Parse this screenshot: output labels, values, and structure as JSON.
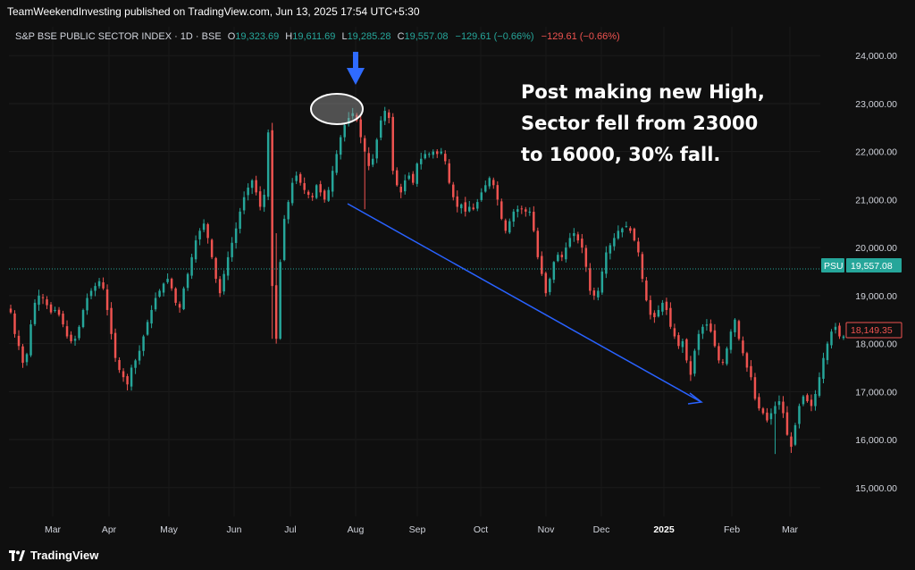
{
  "header": {
    "published": "TeamWeekendInvesting published on TradingView.com, Jun 13, 2025 17:54 UTC+5:30"
  },
  "legend": {
    "symbol": "S&P BSE PUBLIC SECTOR INDEX · 1D · BSE",
    "o_label": "O",
    "o_value": "19,323.69",
    "h_label": "H",
    "h_value": "19,611.69",
    "l_label": "L",
    "l_value": "19,285.28",
    "c_label": "C",
    "c_value": "19,557.08",
    "change": "−129.61 (−0.66%)",
    "change2": "−129.61 (−0.66%)"
  },
  "annotation": {
    "line1": "Post making new High,",
    "line2": "Sector fell from 23000",
    "line3": "to 16000, 30% fall."
  },
  "price_tags": {
    "psu_label": "PSU",
    "psu_value": "19,557.08",
    "cross_value": "18,149.35"
  },
  "footer": {
    "brand": "TradingView"
  },
  "colors": {
    "background": "#0f0f0f",
    "up": "#26a69a",
    "down": "#ef5350",
    "trend_line": "#2962ff",
    "arrow": "#2f6bff"
  },
  "chart_data": {
    "type": "candlestick",
    "ylim": [
      14400,
      24600
    ],
    "y_ticks": [
      15000,
      16000,
      17000,
      18000,
      19000,
      20000,
      21000,
      22000,
      23000,
      24000
    ],
    "y_tick_labels": [
      "15,000.00",
      "16,000.00",
      "17,000.00",
      "18,000.00",
      "19,000.00",
      "20,000.00",
      "21,000.00",
      "22,000.00",
      "23,000.00",
      "24,000.00"
    ],
    "x_tick_labels": [
      "Mar",
      "Apr",
      "May",
      "Jun",
      "Jul",
      "Aug",
      "Sep",
      "Oct",
      "Nov",
      "Dec",
      "2025",
      "Feb",
      "Mar"
    ],
    "bold_tick": "2025",
    "closes": [
      18650,
      18200,
      17950,
      17600,
      17780,
      18400,
      18850,
      19000,
      18950,
      18800,
      18650,
      18700,
      18600,
      18400,
      18150,
      18050,
      18100,
      18350,
      18700,
      18950,
      19100,
      19200,
      19300,
      19150,
      18700,
      18200,
      17700,
      17450,
      17300,
      17150,
      17500,
      17650,
      17850,
      18150,
      18450,
      18700,
      18950,
      19100,
      19250,
      19350,
      19150,
      18850,
      18750,
      19150,
      19450,
      19800,
      20150,
      20350,
      20500,
      20200,
      19800,
      19350,
      19050,
      19450,
      19800,
      20100,
      20400,
      20750,
      21050,
      21250,
      21400,
      21150,
      20850,
      21100,
      22400,
      19200,
      18100,
      19700,
      20600,
      20950,
      21350,
      21500,
      21350,
      21200,
      21100,
      21050,
      21300,
      21150,
      21000,
      21200,
      21600,
      21950,
      22300,
      22550,
      22700,
      22800,
      22650,
      22300,
      22000,
      21700,
      21850,
      22250,
      22650,
      22850,
      22700,
      21600,
      21300,
      21150,
      21400,
      21500,
      21350,
      21750,
      21850,
      21950,
      21950,
      22000,
      21950,
      22000,
      21800,
      21350,
      21050,
      20850,
      20900,
      20750,
      20850,
      20800,
      20950,
      21150,
      21300,
      21450,
      21300,
      21000,
      20600,
      20350,
      20550,
      20750,
      20800,
      20800,
      20750,
      20750,
      20350,
      19800,
      19450,
      19050,
      19350,
      19700,
      19850,
      19800,
      20000,
      20200,
      20300,
      20150,
      20000,
      19600,
      19100,
      19000,
      19100,
      19500,
      19900,
      20050,
      20200,
      20350,
      20400,
      20450,
      20350,
      20150,
      19900,
      19350,
      18900,
      18600,
      18550,
      18700,
      18850,
      18700,
      18350,
      18150,
      17950,
      18050,
      17650,
      17350,
      17850,
      18200,
      18350,
      18400,
      18250,
      17950,
      17650,
      17600,
      17900,
      18250,
      18500,
      18100,
      17800,
      17500,
      17300,
      16850,
      16650,
      16550,
      16400,
      16550,
      16700,
      16800,
      16550,
      16100,
      15850,
      16300,
      16700,
      16900,
      16800,
      16700,
      16950,
      17300,
      17700,
      18000,
      18250,
      18350,
      18150,
      18149
    ]
  }
}
